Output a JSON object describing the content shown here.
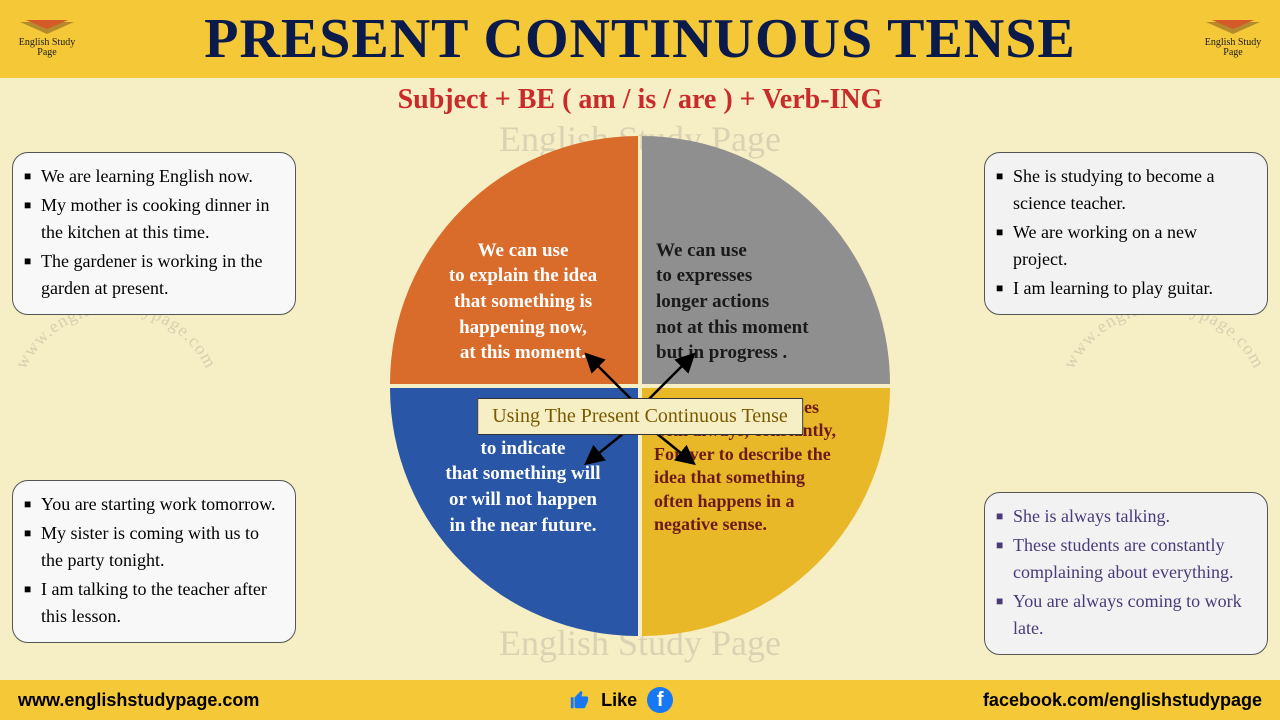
{
  "colors": {
    "page_bg": "#f6eec4",
    "header_bg": "#f5c838",
    "footer_bg": "#f5c838",
    "title_color": "#0a1a4a",
    "formula_color": "#c92a2a",
    "center_label_bg": "#f6eec4",
    "center_label_color": "#7a5a00",
    "watermark_color": "rgba(120,120,120,0.22)",
    "box_bg_tl": "#f8f8f8",
    "box_bg_tr": "#f2f2f2",
    "box_bg_bl": "#f8f8f8",
    "box_bg_br": "#f2f2f2",
    "box_text_br": "#4a3a7a",
    "fb_bg": "#1877f2",
    "thumb_bg": "#1877f2"
  },
  "header": {
    "title": "PRESENT CONTINUOUS TENSE",
    "logo_text": "English Study Page"
  },
  "formula": "Subject + BE ( am / is / are ) + Verb-ING",
  "center_label": "Using The Present Continuous Tense",
  "watermarks": {
    "top": "English Study Page",
    "bottom": "English Study Page",
    "arc": "www.englishstudypage.com"
  },
  "quadrants": {
    "tl": {
      "bg": "#d96c2b",
      "text_color": "#ffffff",
      "text": "We can use\nto explain the idea\nthat something is\nhappening now,\nat this moment."
    },
    "tr": {
      "bg": "#8f8f8f",
      "text_color": "#1a1a1a",
      "text": "We can use\nto expresses\nlonger actions\nnot at this moment\nbut in progress ."
    },
    "bl": {
      "bg": "#2956a6",
      "text_color": "#ffffff",
      "text": "We can use\nto indicate\nthat something will\nor will not happen\nin the near future."
    },
    "br": {
      "bg": "#e9b828",
      "text_color": "#6b1a1a",
      "text": "We can use the tenses\nwith always, constantly,\nForever to describe the\nidea that something\noften happens in a\nnegative sense."
    }
  },
  "examples": {
    "tl": [
      "We are learning English now.",
      "My mother is cooking dinner in the kitchen at this time.",
      "The gardener is working in the garden at present."
    ],
    "tr": [
      "She is studying to become a science teacher.",
      "We are working on a new project.",
      "I am learning to play guitar."
    ],
    "bl": [
      "You are starting work tomorrow.",
      "My sister is coming with us to the party tonight.",
      "I am talking to the teacher after this lesson."
    ],
    "br": [
      "She is always talking.",
      "These students are constantly complaining about everything.",
      "You are always coming to work late."
    ]
  },
  "footer": {
    "left": "www.englishstudypage.com",
    "like": "Like",
    "right": "facebook.com/englishstudypage"
  }
}
